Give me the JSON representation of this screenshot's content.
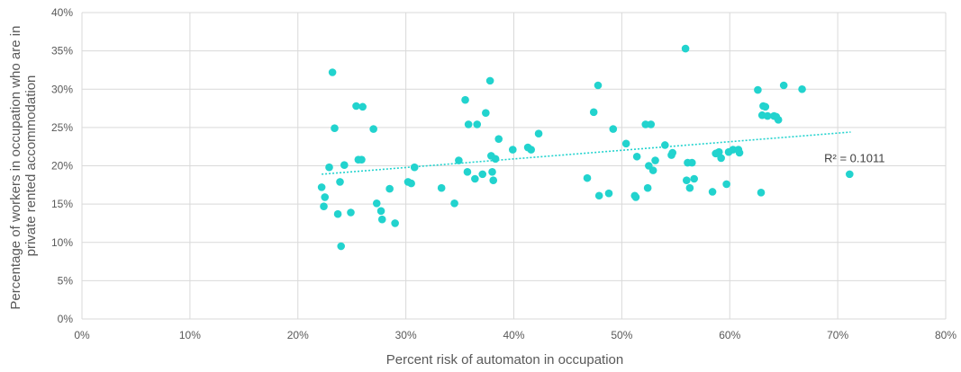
{
  "chart_data": {
    "type": "scatter",
    "xlabel": "Percent risk of automaton in occupation",
    "ylabel_lines": [
      "Percentage of workers in occupation who are in",
      "private rented accommodation"
    ],
    "xlim": [
      0,
      0.8
    ],
    "ylim": [
      0,
      0.4
    ],
    "x_ticks": [
      "0%",
      "10%",
      "20%",
      "30%",
      "40%",
      "50%",
      "60%",
      "70%",
      "80%"
    ],
    "y_ticks": [
      "0%",
      "5%",
      "10%",
      "15%",
      "20%",
      "25%",
      "30%",
      "35%",
      "40%"
    ],
    "grid": true,
    "marker_color": "#22D3CE",
    "trendline": {
      "type": "linear",
      "x_range": [
        0.222,
        0.712
      ],
      "y_range": [
        0.189,
        0.244
      ],
      "style": "dotted",
      "color": "#22D3CE",
      "label": "R² = 0.1011"
    },
    "points": [
      {
        "x": 0.222,
        "y": 0.172
      },
      {
        "x": 0.224,
        "y": 0.147
      },
      {
        "x": 0.225,
        "y": 0.159
      },
      {
        "x": 0.229,
        "y": 0.198
      },
      {
        "x": 0.232,
        "y": 0.322
      },
      {
        "x": 0.234,
        "y": 0.249
      },
      {
        "x": 0.237,
        "y": 0.137
      },
      {
        "x": 0.239,
        "y": 0.179
      },
      {
        "x": 0.24,
        "y": 0.095
      },
      {
        "x": 0.243,
        "y": 0.201
      },
      {
        "x": 0.249,
        "y": 0.139
      },
      {
        "x": 0.254,
        "y": 0.278
      },
      {
        "x": 0.256,
        "y": 0.208
      },
      {
        "x": 0.259,
        "y": 0.208
      },
      {
        "x": 0.26,
        "y": 0.277
      },
      {
        "x": 0.27,
        "y": 0.248
      },
      {
        "x": 0.273,
        "y": 0.151
      },
      {
        "x": 0.277,
        "y": 0.141
      },
      {
        "x": 0.278,
        "y": 0.13
      },
      {
        "x": 0.285,
        "y": 0.17
      },
      {
        "x": 0.29,
        "y": 0.125
      },
      {
        "x": 0.302,
        "y": 0.179
      },
      {
        "x": 0.305,
        "y": 0.177
      },
      {
        "x": 0.308,
        "y": 0.198
      },
      {
        "x": 0.333,
        "y": 0.171
      },
      {
        "x": 0.345,
        "y": 0.151
      },
      {
        "x": 0.349,
        "y": 0.207
      },
      {
        "x": 0.355,
        "y": 0.286
      },
      {
        "x": 0.357,
        "y": 0.192
      },
      {
        "x": 0.358,
        "y": 0.254
      },
      {
        "x": 0.364,
        "y": 0.183
      },
      {
        "x": 0.366,
        "y": 0.254
      },
      {
        "x": 0.371,
        "y": 0.189
      },
      {
        "x": 0.374,
        "y": 0.269
      },
      {
        "x": 0.378,
        "y": 0.311
      },
      {
        "x": 0.379,
        "y": 0.213
      },
      {
        "x": 0.38,
        "y": 0.192
      },
      {
        "x": 0.381,
        "y": 0.181
      },
      {
        "x": 0.383,
        "y": 0.209
      },
      {
        "x": 0.386,
        "y": 0.235
      },
      {
        "x": 0.399,
        "y": 0.221
      },
      {
        "x": 0.413,
        "y": 0.224
      },
      {
        "x": 0.416,
        "y": 0.221
      },
      {
        "x": 0.423,
        "y": 0.242
      },
      {
        "x": 0.468,
        "y": 0.184
      },
      {
        "x": 0.474,
        "y": 0.27
      },
      {
        "x": 0.478,
        "y": 0.305
      },
      {
        "x": 0.479,
        "y": 0.161
      },
      {
        "x": 0.488,
        "y": 0.164
      },
      {
        "x": 0.492,
        "y": 0.248
      },
      {
        "x": 0.504,
        "y": 0.229
      },
      {
        "x": 0.512,
        "y": 0.161
      },
      {
        "x": 0.513,
        "y": 0.159
      },
      {
        "x": 0.514,
        "y": 0.212
      },
      {
        "x": 0.522,
        "y": 0.254
      },
      {
        "x": 0.524,
        "y": 0.171
      },
      {
        "x": 0.525,
        "y": 0.2
      },
      {
        "x": 0.527,
        "y": 0.254
      },
      {
        "x": 0.529,
        "y": 0.194
      },
      {
        "x": 0.531,
        "y": 0.207
      },
      {
        "x": 0.54,
        "y": 0.227
      },
      {
        "x": 0.546,
        "y": 0.214
      },
      {
        "x": 0.547,
        "y": 0.217
      },
      {
        "x": 0.559,
        "y": 0.353
      },
      {
        "x": 0.56,
        "y": 0.181
      },
      {
        "x": 0.561,
        "y": 0.204
      },
      {
        "x": 0.563,
        "y": 0.171
      },
      {
        "x": 0.565,
        "y": 0.204
      },
      {
        "x": 0.567,
        "y": 0.183
      },
      {
        "x": 0.584,
        "y": 0.166
      },
      {
        "x": 0.587,
        "y": 0.216
      },
      {
        "x": 0.59,
        "y": 0.218
      },
      {
        "x": 0.592,
        "y": 0.21
      },
      {
        "x": 0.597,
        "y": 0.176
      },
      {
        "x": 0.599,
        "y": 0.218
      },
      {
        "x": 0.603,
        "y": 0.221
      },
      {
        "x": 0.608,
        "y": 0.221
      },
      {
        "x": 0.609,
        "y": 0.217
      },
      {
        "x": 0.626,
        "y": 0.299
      },
      {
        "x": 0.629,
        "y": 0.165
      },
      {
        "x": 0.63,
        "y": 0.266
      },
      {
        "x": 0.631,
        "y": 0.278
      },
      {
        "x": 0.633,
        "y": 0.277
      },
      {
        "x": 0.635,
        "y": 0.265
      },
      {
        "x": 0.641,
        "y": 0.265
      },
      {
        "x": 0.643,
        "y": 0.264
      },
      {
        "x": 0.645,
        "y": 0.26
      },
      {
        "x": 0.65,
        "y": 0.305
      },
      {
        "x": 0.667,
        "y": 0.3
      },
      {
        "x": 0.711,
        "y": 0.189
      }
    ]
  }
}
